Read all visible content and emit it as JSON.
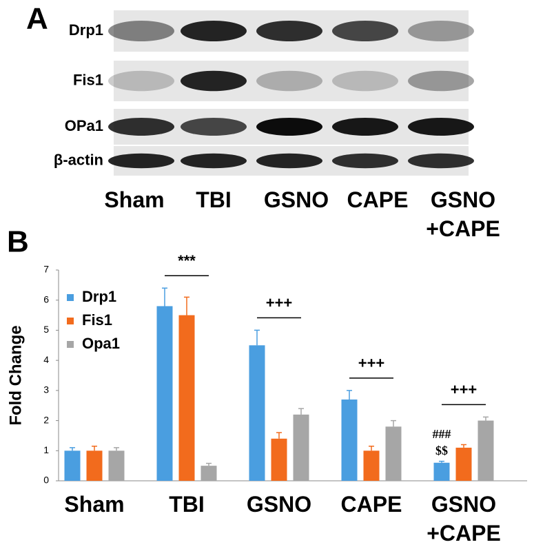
{
  "panel_a": {
    "label": "A",
    "rows": [
      "Drp1",
      "Fis1",
      "OPa1",
      "β-actin"
    ],
    "lanes": [
      "Sham",
      "TBI",
      "GSNO",
      "CAPE",
      "GSNO\n+CAPE"
    ]
  },
  "chart_data": {
    "type": "bar",
    "panel_label": "B",
    "y_label": "Fold Change",
    "categories": [
      "Sham",
      "TBI",
      "GSNO",
      "CAPE",
      "GSNO\n+CAPE"
    ],
    "series": [
      {
        "name": "Drp1",
        "color": "#4a9ee0",
        "values": [
          1.0,
          5.8,
          4.5,
          2.7,
          0.6
        ],
        "errors": [
          0.1,
          0.6,
          0.5,
          0.3,
          0.05
        ],
        "annotations": [
          null,
          null,
          null,
          null,
          [
            "###",
            "$$"
          ]
        ]
      },
      {
        "name": "Fis1",
        "color": "#f26b1d",
        "values": [
          1.0,
          5.5,
          1.4,
          1.0,
          1.1
        ],
        "errors": [
          0.15,
          0.6,
          0.2,
          0.15,
          0.1
        ]
      },
      {
        "name": "Opa1",
        "color": "#a6a6a6",
        "values": [
          1.0,
          0.5,
          2.2,
          1.8,
          2.0
        ],
        "errors": [
          0.1,
          0.08,
          0.2,
          0.2,
          0.12
        ]
      }
    ],
    "significance": [
      null,
      "***",
      "+++",
      "+++",
      "+++"
    ],
    "ylim": [
      0,
      7
    ],
    "yticks": [
      0,
      1,
      2,
      3,
      4,
      5,
      6,
      7
    ],
    "grid": false,
    "legend": "upper left"
  }
}
